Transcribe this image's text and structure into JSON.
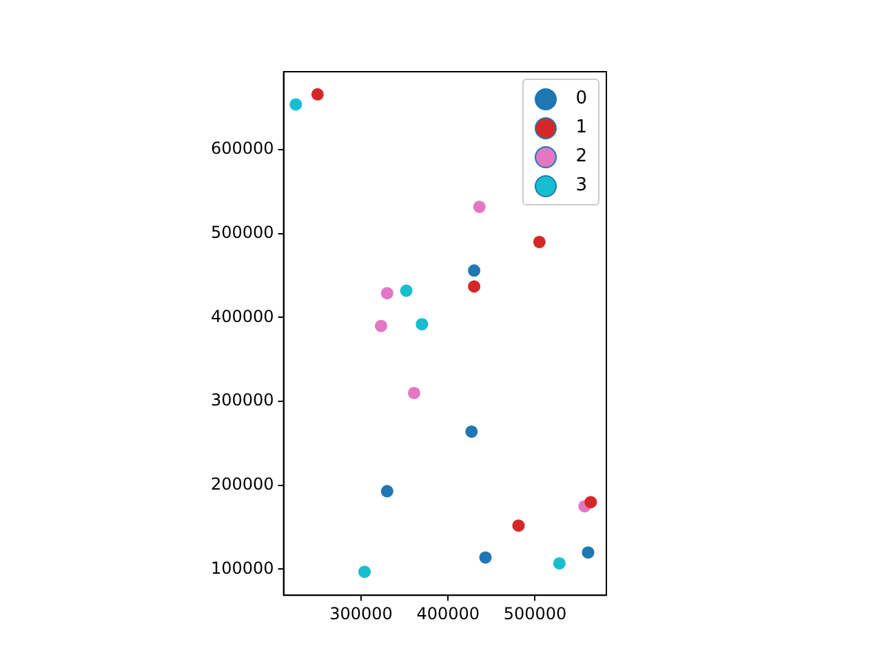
{
  "chart_data": {
    "type": "scatter",
    "xlim": [
      211000,
      582000
    ],
    "ylim": [
      69000,
      693000
    ],
    "xticks": [
      300000,
      400000,
      500000
    ],
    "yticks": [
      100000,
      200000,
      300000,
      400000,
      500000,
      600000
    ],
    "grid": false,
    "legend": "top right",
    "marker": "circle",
    "series": [
      {
        "name": "0",
        "color": "#1f77b4",
        "x": [
          430000,
          427000,
          330000,
          443000,
          561000
        ],
        "values": [
          456000,
          264000,
          193000,
          114000,
          120000
        ]
      },
      {
        "name": "1",
        "color": "#d62728",
        "x": [
          250000,
          505000,
          430000,
          481000,
          564000
        ],
        "values": [
          666000,
          490000,
          437000,
          152000,
          180000
        ]
      },
      {
        "name": "2",
        "color": "#e377c2",
        "x": [
          436000,
          330000,
          323000,
          361000,
          557000
        ],
        "values": [
          532000,
          429000,
          390000,
          310000,
          175000
        ]
      },
      {
        "name": "3",
        "color": "#17becf",
        "x": [
          225000,
          352000,
          370000,
          304000,
          528000
        ],
        "values": [
          654000,
          432000,
          392000,
          97000,
          107000
        ]
      }
    ]
  }
}
